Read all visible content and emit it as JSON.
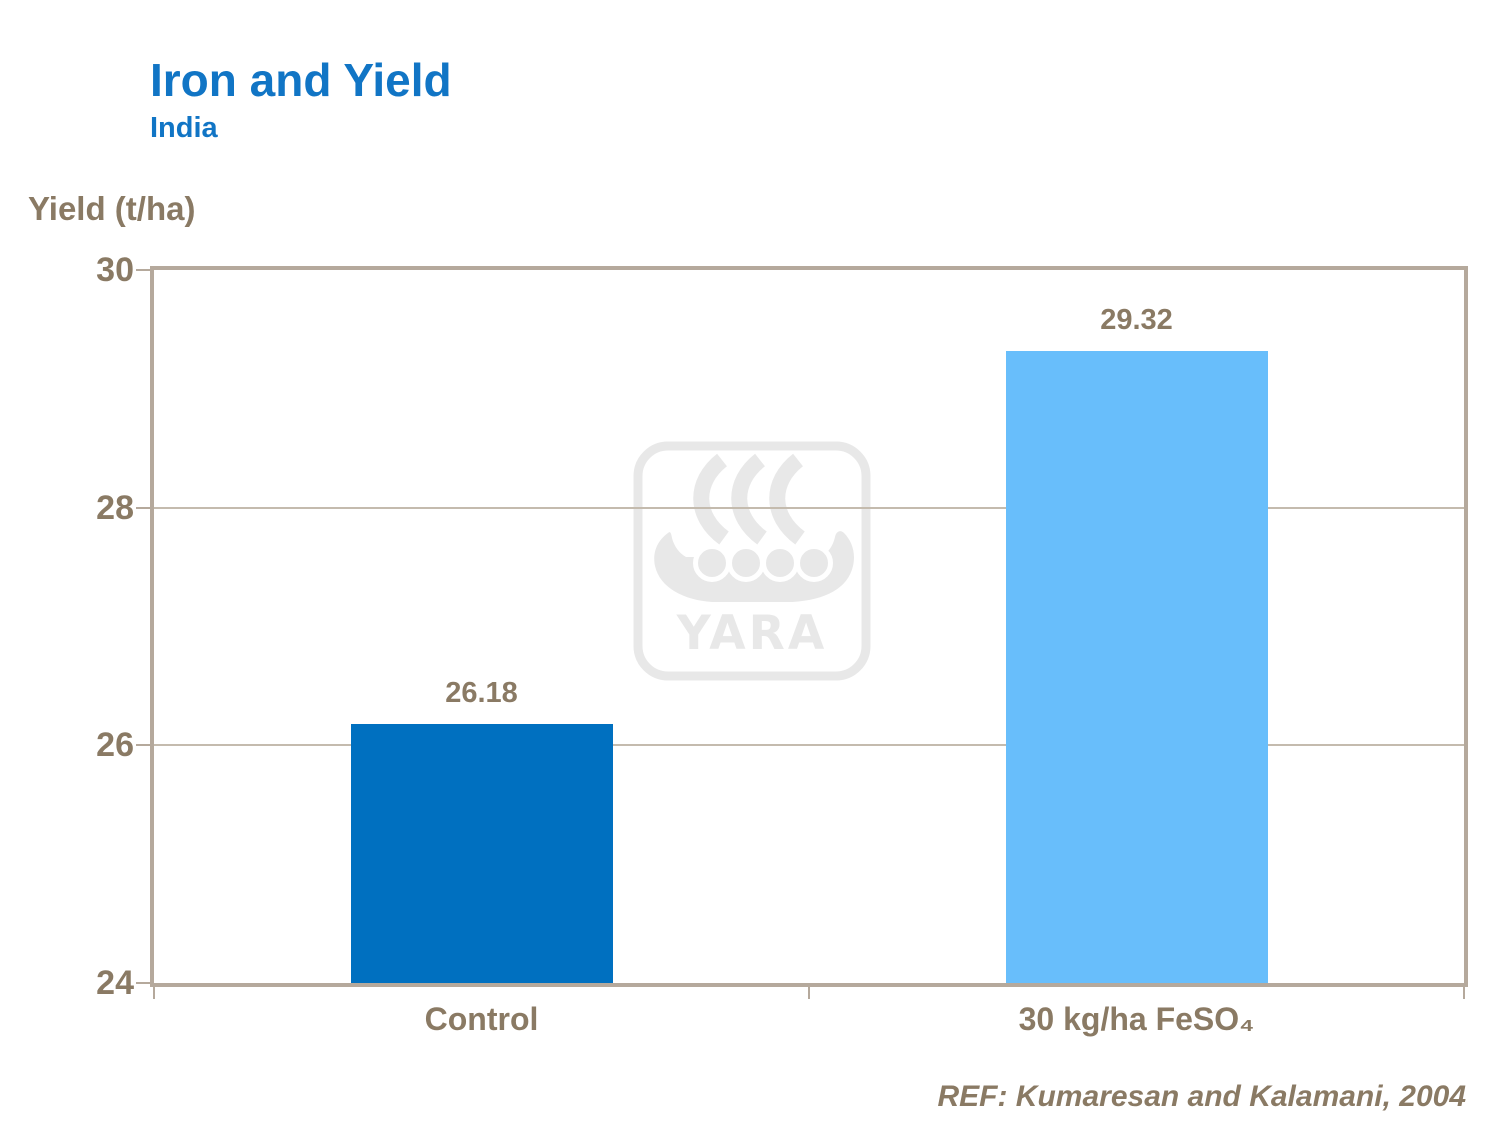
{
  "header": {
    "title": "Iron and Yield",
    "subtitle": "India"
  },
  "chart_data": {
    "type": "bar",
    "title": "Iron and Yield",
    "subtitle": "India",
    "categories": [
      "Control",
      "30 kg/ha FeSO₄"
    ],
    "values": [
      26.18,
      29.32
    ],
    "value_labels": [
      "26.18",
      "29.32"
    ],
    "bar_colors": [
      "#0070C0",
      "#68BEFB"
    ],
    "xlabel": "",
    "ylabel": "Yield (t/ha)",
    "ylim": [
      24,
      30
    ],
    "yticks": [
      24,
      26,
      28,
      30
    ],
    "grid": "horizontal",
    "legend": "none"
  },
  "watermark": {
    "name": "yara-viking-ship-logo",
    "text": "YARA",
    "color": "#E8E8E8"
  },
  "footer": {
    "reference": "REF: Kumaresan and Kalamani, 2004"
  },
  "palette": {
    "title_blue": "#1175C5",
    "text_brown": "#8A7A64",
    "frame_tan": "#B5A99C",
    "gridline_tan": "#C4BBAE",
    "background": "#FFFFFF"
  }
}
